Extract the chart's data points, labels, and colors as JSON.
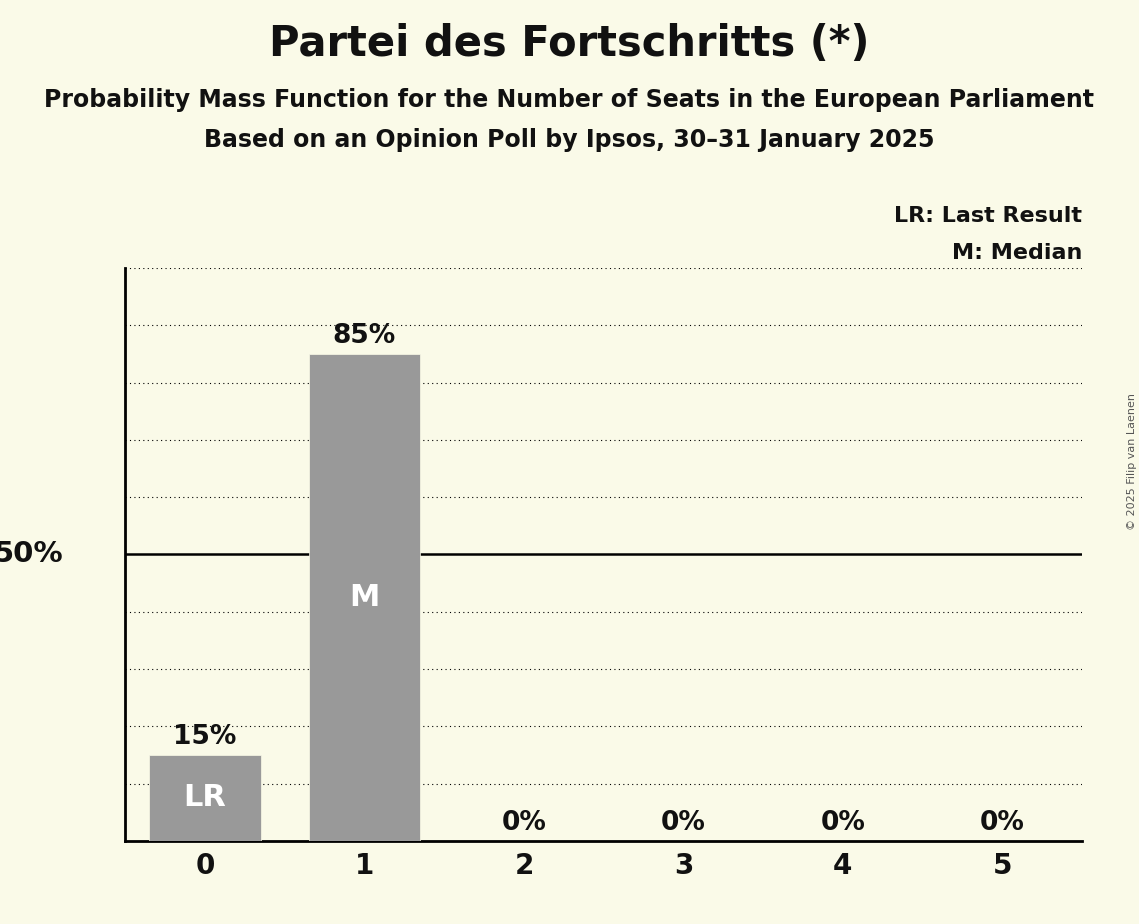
{
  "title": "Partei des Fortschritts (*)",
  "subtitle1": "Probability Mass Function for the Number of Seats in the European Parliament",
  "subtitle2": "Based on an Opinion Poll by Ipsos, 30–31 January 2025",
  "copyright": "© 2025 Filip van Laenen",
  "x_values": [
    0,
    1,
    2,
    3,
    4,
    5
  ],
  "y_values": [
    0.15,
    0.85,
    0.0,
    0.0,
    0.0,
    0.0
  ],
  "bar_labels": [
    "LR",
    "M",
    "",
    "",
    "",
    ""
  ],
  "bar_pct_labels": [
    "15%",
    "85%",
    "0%",
    "0%",
    "0%",
    "0%"
  ],
  "bar_color": "#999999",
  "background_color": "#FAFAE8",
  "text_color": "#111111",
  "legend_lr": "LR: Last Result",
  "legend_m": "M: Median",
  "y50_label": "50%",
  "ylim_max": 1.0,
  "yticks_dotted": [
    0.1,
    0.2,
    0.3,
    0.4,
    0.6,
    0.7,
    0.8,
    0.9,
    1.0
  ],
  "ytick_solid": 0.5,
  "title_fontsize": 30,
  "subtitle_fontsize": 17,
  "bar_label_fontsize": 22,
  "pct_label_fontsize": 19,
  "axis_tick_fontsize": 20,
  "y_axis_label_fontsize": 21,
  "legend_fontsize": 16,
  "copyright_fontsize": 8
}
